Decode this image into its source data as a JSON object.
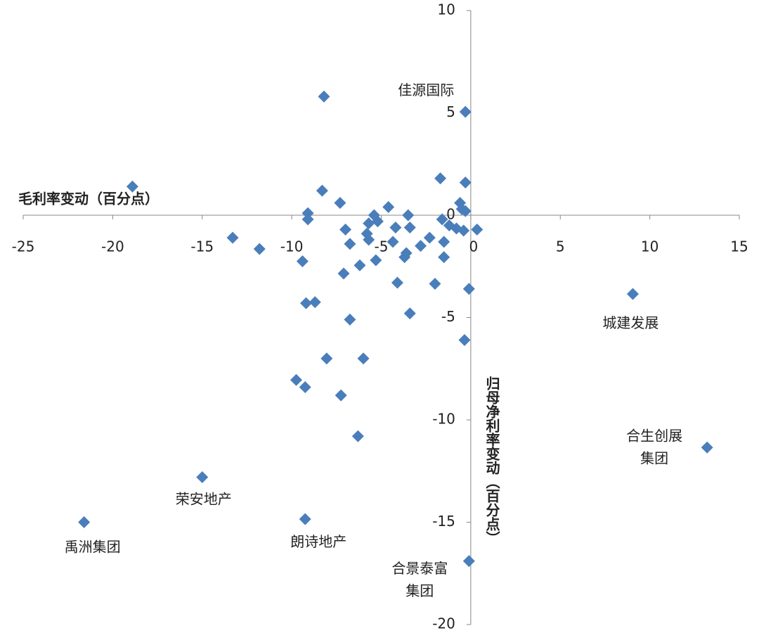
{
  "chart_data": {
    "type": "scatter",
    "x_label": "毛利率变动（百分点）",
    "y_label": "归母净利率变动（百分点）",
    "color": "#4a7ebb",
    "xlim": [
      -25,
      15
    ],
    "xticks": [
      -25,
      -20,
      -15,
      -10,
      -5,
      0,
      5,
      10,
      15
    ],
    "ylim": [
      -20,
      10
    ],
    "yticks": [
      -20,
      -15,
      -10,
      -5,
      0,
      5,
      10
    ],
    "x": [
      -8.2,
      -0.3,
      -18.9,
      -1.7,
      -0.3,
      -8.3,
      -7.3,
      -4.6,
      -9.1,
      -9.1,
      -5.4,
      -3.5,
      -0.6,
      -0.5,
      -0.3,
      -5.2,
      -5.7,
      -4.2,
      -3.4,
      -1.6,
      -1.2,
      -0.8,
      -0.4,
      0.35,
      -7.0,
      -5.8,
      -5.7,
      -13.3,
      -11.8,
      -6.75,
      -4.35,
      -2.8,
      -2.3,
      -1.5,
      -3.6,
      -3.7,
      -1.5,
      -9.4,
      -6.2,
      -5.3,
      -7.1,
      -4.1,
      -2.0,
      -0.1,
      -9.2,
      -8.7,
      -3.4,
      -6.75,
      -0.35,
      9.05,
      -8.05,
      -6.0,
      -9.75,
      -9.25,
      -7.25,
      -6.3,
      13.2,
      -15.0,
      -21.6,
      -9.25,
      -0.1
    ],
    "y": [
      5.8,
      5.05,
      1.4,
      1.8,
      1.6,
      1.2,
      0.6,
      0.4,
      0.1,
      -0.2,
      0.0,
      0.0,
      0.6,
      0.3,
      0.2,
      -0.3,
      -0.4,
      -0.6,
      -0.6,
      -0.2,
      -0.5,
      -0.65,
      -0.75,
      -0.7,
      -0.7,
      -0.9,
      -1.2,
      -1.1,
      -1.65,
      -1.4,
      -1.3,
      -1.5,
      -1.1,
      -1.3,
      -1.85,
      -2.05,
      -2.05,
      -2.25,
      -2.45,
      -2.2,
      -2.85,
      -3.3,
      -3.35,
      -3.6,
      -4.3,
      -4.25,
      -4.8,
      -5.1,
      -6.1,
      -3.85,
      -7.0,
      -7.0,
      -8.05,
      -8.4,
      -8.8,
      -10.8,
      -11.35,
      -12.8,
      -15.0,
      -14.85,
      -16.9
    ],
    "point_labels": [
      null,
      "佳源国际",
      null,
      null,
      null,
      null,
      null,
      null,
      null,
      null,
      null,
      null,
      null,
      null,
      null,
      null,
      null,
      null,
      null,
      null,
      null,
      null,
      null,
      null,
      null,
      null,
      null,
      null,
      null,
      null,
      null,
      null,
      null,
      null,
      null,
      null,
      null,
      null,
      null,
      null,
      null,
      null,
      null,
      null,
      null,
      null,
      null,
      null,
      null,
      "城建发展",
      null,
      null,
      null,
      null,
      null,
      null,
      "合生创展\n集团",
      "荣安地产",
      "禹洲集团",
      "朗诗地产",
      "合景泰富\n集团"
    ]
  }
}
